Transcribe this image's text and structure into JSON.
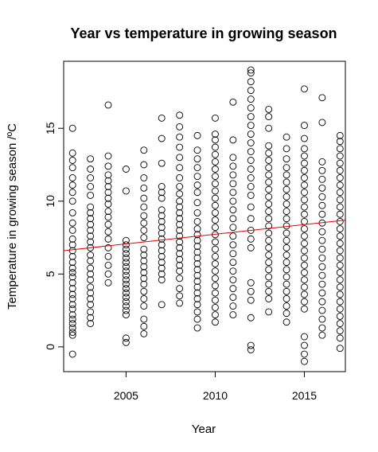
{
  "chart_data": {
    "type": "scatter",
    "title": "Year vs temperature in growing season",
    "xlabel": "Year",
    "ylabel": "Temperature in growing season /ºC",
    "xlim": [
      2001.5,
      2017.3
    ],
    "ylim": [
      -1.7,
      19.6
    ],
    "x_ticks": [
      2005,
      2010,
      2015
    ],
    "y_ticks": [
      0,
      5,
      10,
      15
    ],
    "grid": false,
    "trend_line": {
      "color": "#e00000",
      "x": [
        2001.5,
        2017.3
      ],
      "y": [
        6.6,
        8.7
      ]
    },
    "points": [
      [
        2002,
        -0.5
      ],
      [
        2002,
        0.8
      ],
      [
        2002,
        1.0
      ],
      [
        2002,
        1.3
      ],
      [
        2002,
        1.6
      ],
      [
        2002,
        1.9
      ],
      [
        2002,
        2.2
      ],
      [
        2002,
        2.6
      ],
      [
        2002,
        2.9
      ],
      [
        2002,
        3.3
      ],
      [
        2002,
        3.6
      ],
      [
        2002,
        4.0
      ],
      [
        2002,
        4.4
      ],
      [
        2002,
        4.8
      ],
      [
        2002,
        5.1
      ],
      [
        2002,
        5.4
      ],
      [
        2002,
        5.8
      ],
      [
        2002,
        6.2
      ],
      [
        2002,
        6.6
      ],
      [
        2002,
        7.0
      ],
      [
        2002,
        7.4
      ],
      [
        2002,
        8.0
      ],
      [
        2002,
        8.5
      ],
      [
        2002,
        9.2
      ],
      [
        2002,
        10.0
      ],
      [
        2002,
        10.6
      ],
      [
        2002,
        11.1
      ],
      [
        2002,
        11.6
      ],
      [
        2002,
        12.3
      ],
      [
        2002,
        12.8
      ],
      [
        2002,
        13.3
      ],
      [
        2002,
        15.0
      ],
      [
        2003,
        1.6
      ],
      [
        2003,
        2.0
      ],
      [
        2003,
        2.4
      ],
      [
        2003,
        2.9
      ],
      [
        2003,
        3.3
      ],
      [
        2003,
        3.7
      ],
      [
        2003,
        4.1
      ],
      [
        2003,
        4.6
      ],
      [
        2003,
        5.0
      ],
      [
        2003,
        5.4
      ],
      [
        2003,
        5.9
      ],
      [
        2003,
        6.3
      ],
      [
        2003,
        6.8
      ],
      [
        2003,
        7.2
      ],
      [
        2003,
        7.6
      ],
      [
        2003,
        8.0
      ],
      [
        2003,
        8.4
      ],
      [
        2003,
        8.8
      ],
      [
        2003,
        9.2
      ],
      [
        2003,
        9.6
      ],
      [
        2003,
        10.4
      ],
      [
        2003,
        11.0
      ],
      [
        2003,
        11.6
      ],
      [
        2003,
        12.2
      ],
      [
        2003,
        12.9
      ],
      [
        2004,
        4.4
      ],
      [
        2004,
        5.0
      ],
      [
        2004,
        5.6
      ],
      [
        2004,
        6.2
      ],
      [
        2004,
        6.8
      ],
      [
        2004,
        7.4
      ],
      [
        2004,
        7.9
      ],
      [
        2004,
        8.4
      ],
      [
        2004,
        8.9
      ],
      [
        2004,
        9.3
      ],
      [
        2004,
        9.8
      ],
      [
        2004,
        10.2
      ],
      [
        2004,
        10.6
      ],
      [
        2004,
        11.0
      ],
      [
        2004,
        11.4
      ],
      [
        2004,
        11.8
      ],
      [
        2004,
        12.4
      ],
      [
        2004,
        13.1
      ],
      [
        2004,
        16.6
      ],
      [
        2005,
        0.3
      ],
      [
        2005,
        0.6
      ],
      [
        2005,
        2.2
      ],
      [
        2005,
        2.5
      ],
      [
        2005,
        2.8
      ],
      [
        2005,
        3.1
      ],
      [
        2005,
        3.4
      ],
      [
        2005,
        3.7
      ],
      [
        2005,
        4.0
      ],
      [
        2005,
        4.3
      ],
      [
        2005,
        4.6
      ],
      [
        2005,
        4.9
      ],
      [
        2005,
        5.2
      ],
      [
        2005,
        5.5
      ],
      [
        2005,
        5.8
      ],
      [
        2005,
        6.1
      ],
      [
        2005,
        6.4
      ],
      [
        2005,
        6.7
      ],
      [
        2005,
        7.0
      ],
      [
        2005,
        7.3
      ],
      [
        2005,
        10.7
      ],
      [
        2005,
        12.2
      ],
      [
        2006,
        0.9
      ],
      [
        2006,
        1.4
      ],
      [
        2006,
        1.9
      ],
      [
        2006,
        2.8
      ],
      [
        2006,
        3.3
      ],
      [
        2006,
        3.8
      ],
      [
        2006,
        4.3
      ],
      [
        2006,
        4.7
      ],
      [
        2006,
        5.1
      ],
      [
        2006,
        5.5
      ],
      [
        2006,
        5.9
      ],
      [
        2006,
        6.3
      ],
      [
        2006,
        6.7
      ],
      [
        2006,
        7.5
      ],
      [
        2006,
        8.0
      ],
      [
        2006,
        8.5
      ],
      [
        2006,
        9.0
      ],
      [
        2006,
        9.6
      ],
      [
        2006,
        10.2
      ],
      [
        2006,
        10.9
      ],
      [
        2006,
        11.6
      ],
      [
        2006,
        12.5
      ],
      [
        2006,
        13.5
      ],
      [
        2007,
        2.9
      ],
      [
        2007,
        4.6
      ],
      [
        2007,
        5.0
      ],
      [
        2007,
        5.4
      ],
      [
        2007,
        5.8
      ],
      [
        2007,
        6.2
      ],
      [
        2007,
        6.6
      ],
      [
        2007,
        7.0
      ],
      [
        2007,
        7.4
      ],
      [
        2007,
        7.8
      ],
      [
        2007,
        8.2
      ],
      [
        2007,
        8.6
      ],
      [
        2007,
        9.0
      ],
      [
        2007,
        9.4
      ],
      [
        2007,
        10.2
      ],
      [
        2007,
        10.6
      ],
      [
        2007,
        11.0
      ],
      [
        2007,
        12.6
      ],
      [
        2007,
        14.3
      ],
      [
        2007,
        15.7
      ],
      [
        2008,
        3.0
      ],
      [
        2008,
        3.5
      ],
      [
        2008,
        4.0
      ],
      [
        2008,
        4.7
      ],
      [
        2008,
        5.2
      ],
      [
        2008,
        5.6
      ],
      [
        2008,
        6.0
      ],
      [
        2008,
        6.4
      ],
      [
        2008,
        6.8
      ],
      [
        2008,
        7.2
      ],
      [
        2008,
        7.6
      ],
      [
        2008,
        8.0
      ],
      [
        2008,
        8.4
      ],
      [
        2008,
        8.8
      ],
      [
        2008,
        9.2
      ],
      [
        2008,
        9.6
      ],
      [
        2008,
        10.0
      ],
      [
        2008,
        10.5
      ],
      [
        2008,
        11.0
      ],
      [
        2008,
        11.6
      ],
      [
        2008,
        12.3
      ],
      [
        2008,
        13.0
      ],
      [
        2008,
        13.7
      ],
      [
        2008,
        14.4
      ],
      [
        2008,
        15.1
      ],
      [
        2008,
        15.9
      ],
      [
        2009,
        1.3
      ],
      [
        2009,
        1.9
      ],
      [
        2009,
        2.4
      ],
      [
        2009,
        2.9
      ],
      [
        2009,
        3.3
      ],
      [
        2009,
        3.7
      ],
      [
        2009,
        4.1
      ],
      [
        2009,
        4.5
      ],
      [
        2009,
        4.9
      ],
      [
        2009,
        5.3
      ],
      [
        2009,
        5.7
      ],
      [
        2009,
        6.1
      ],
      [
        2009,
        6.5
      ],
      [
        2009,
        6.9
      ],
      [
        2009,
        7.3
      ],
      [
        2009,
        7.7
      ],
      [
        2009,
        8.1
      ],
      [
        2009,
        8.6
      ],
      [
        2009,
        9.2
      ],
      [
        2009,
        9.9
      ],
      [
        2009,
        10.6
      ],
      [
        2009,
        11.1
      ],
      [
        2009,
        11.7
      ],
      [
        2009,
        12.3
      ],
      [
        2009,
        12.9
      ],
      [
        2009,
        13.5
      ],
      [
        2009,
        14.5
      ],
      [
        2010,
        1.7
      ],
      [
        2010,
        2.2
      ],
      [
        2010,
        2.7
      ],
      [
        2010,
        3.2
      ],
      [
        2010,
        3.7
      ],
      [
        2010,
        4.2
      ],
      [
        2010,
        4.7
      ],
      [
        2010,
        5.2
      ],
      [
        2010,
        5.7
      ],
      [
        2010,
        6.2
      ],
      [
        2010,
        6.7
      ],
      [
        2010,
        7.2
      ],
      [
        2010,
        7.7
      ],
      [
        2010,
        8.2
      ],
      [
        2010,
        8.7
      ],
      [
        2010,
        9.2
      ],
      [
        2010,
        9.7
      ],
      [
        2010,
        10.2
      ],
      [
        2010,
        10.7
      ],
      [
        2010,
        11.2
      ],
      [
        2010,
        11.7
      ],
      [
        2010,
        12.2
      ],
      [
        2010,
        12.7
      ],
      [
        2010,
        13.2
      ],
      [
        2010,
        13.7
      ],
      [
        2010,
        14.2
      ],
      [
        2010,
        14.6
      ],
      [
        2010,
        15.7
      ],
      [
        2011,
        2.2
      ],
      [
        2011,
        2.8
      ],
      [
        2011,
        3.4
      ],
      [
        2011,
        4.0
      ],
      [
        2011,
        4.6
      ],
      [
        2011,
        5.2
      ],
      [
        2011,
        5.8
      ],
      [
        2011,
        6.4
      ],
      [
        2011,
        7.0
      ],
      [
        2011,
        7.6
      ],
      [
        2011,
        8.2
      ],
      [
        2011,
        8.8
      ],
      [
        2011,
        9.4
      ],
      [
        2011,
        10.0
      ],
      [
        2011,
        10.6
      ],
      [
        2011,
        11.2
      ],
      [
        2011,
        11.8
      ],
      [
        2011,
        12.4
      ],
      [
        2011,
        13.0
      ],
      [
        2011,
        14.2
      ],
      [
        2011,
        16.8
      ],
      [
        2012,
        -0.2
      ],
      [
        2012,
        0.1
      ],
      [
        2012,
        2.0
      ],
      [
        2012,
        3.2
      ],
      [
        2012,
        3.8
      ],
      [
        2012,
        4.4
      ],
      [
        2012,
        6.8
      ],
      [
        2012,
        7.4
      ],
      [
        2012,
        8.0
      ],
      [
        2012,
        8.8
      ],
      [
        2012,
        9.6
      ],
      [
        2012,
        10.4
      ],
      [
        2012,
        11.0
      ],
      [
        2012,
        11.6
      ],
      [
        2012,
        12.2
      ],
      [
        2012,
        12.8
      ],
      [
        2012,
        13.4
      ],
      [
        2012,
        14.0
      ],
      [
        2012,
        14.6
      ],
      [
        2012,
        15.2
      ],
      [
        2012,
        15.8
      ],
      [
        2012,
        16.4
      ],
      [
        2012,
        17.0
      ],
      [
        2012,
        17.6
      ],
      [
        2012,
        18.2
      ],
      [
        2012,
        18.8
      ],
      [
        2012,
        19.0
      ],
      [
        2013,
        2.4
      ],
      [
        2013,
        3.3
      ],
      [
        2013,
        3.8
      ],
      [
        2013,
        4.3
      ],
      [
        2013,
        4.8
      ],
      [
        2013,
        5.3
      ],
      [
        2013,
        5.8
      ],
      [
        2013,
        6.3
      ],
      [
        2013,
        6.8
      ],
      [
        2013,
        7.3
      ],
      [
        2013,
        7.8
      ],
      [
        2013,
        8.3
      ],
      [
        2013,
        8.8
      ],
      [
        2013,
        9.3
      ],
      [
        2013,
        9.8
      ],
      [
        2013,
        10.3
      ],
      [
        2013,
        10.8
      ],
      [
        2013,
        11.3
      ],
      [
        2013,
        11.8
      ],
      [
        2013,
        12.3
      ],
      [
        2013,
        12.8
      ],
      [
        2013,
        13.3
      ],
      [
        2013,
        13.8
      ],
      [
        2013,
        15.0
      ],
      [
        2013,
        15.8
      ],
      [
        2013,
        16.3
      ],
      [
        2014,
        1.7
      ],
      [
        2014,
        2.3
      ],
      [
        2014,
        2.8
      ],
      [
        2014,
        3.3
      ],
      [
        2014,
        3.8
      ],
      [
        2014,
        4.3
      ],
      [
        2014,
        4.8
      ],
      [
        2014,
        5.3
      ],
      [
        2014,
        5.8
      ],
      [
        2014,
        6.3
      ],
      [
        2014,
        6.8
      ],
      [
        2014,
        7.3
      ],
      [
        2014,
        7.8
      ],
      [
        2014,
        8.3
      ],
      [
        2014,
        8.8
      ],
      [
        2014,
        9.3
      ],
      [
        2014,
        9.8
      ],
      [
        2014,
        10.3
      ],
      [
        2014,
        10.8
      ],
      [
        2014,
        11.3
      ],
      [
        2014,
        11.8
      ],
      [
        2014,
        12.3
      ],
      [
        2014,
        12.9
      ],
      [
        2014,
        13.6
      ],
      [
        2014,
        14.4
      ],
      [
        2015,
        -1.0
      ],
      [
        2015,
        -0.5
      ],
      [
        2015,
        0.1
      ],
      [
        2015,
        0.7
      ],
      [
        2015,
        2.6
      ],
      [
        2015,
        3.1
      ],
      [
        2015,
        3.6
      ],
      [
        2015,
        4.1
      ],
      [
        2015,
        4.6
      ],
      [
        2015,
        5.1
      ],
      [
        2015,
        5.6
      ],
      [
        2015,
        6.1
      ],
      [
        2015,
        6.6
      ],
      [
        2015,
        7.1
      ],
      [
        2015,
        7.6
      ],
      [
        2015,
        8.1
      ],
      [
        2015,
        8.6
      ],
      [
        2015,
        9.1
      ],
      [
        2015,
        9.6
      ],
      [
        2015,
        10.1
      ],
      [
        2015,
        10.6
      ],
      [
        2015,
        11.1
      ],
      [
        2015,
        11.6
      ],
      [
        2015,
        12.1
      ],
      [
        2015,
        12.6
      ],
      [
        2015,
        13.1
      ],
      [
        2015,
        13.6
      ],
      [
        2015,
        14.3
      ],
      [
        2015,
        15.2
      ],
      [
        2015,
        17.7
      ],
      [
        2016,
        0.8
      ],
      [
        2016,
        1.3
      ],
      [
        2016,
        1.9
      ],
      [
        2016,
        2.5
      ],
      [
        2016,
        3.1
      ],
      [
        2016,
        3.7
      ],
      [
        2016,
        4.3
      ],
      [
        2016,
        4.9
      ],
      [
        2016,
        5.5
      ],
      [
        2016,
        6.1
      ],
      [
        2016,
        6.7
      ],
      [
        2016,
        7.3
      ],
      [
        2016,
        7.9
      ],
      [
        2016,
        8.5
      ],
      [
        2016,
        9.1
      ],
      [
        2016,
        9.7
      ],
      [
        2016,
        10.3
      ],
      [
        2016,
        10.9
      ],
      [
        2016,
        11.5
      ],
      [
        2016,
        12.1
      ],
      [
        2016,
        12.7
      ],
      [
        2016,
        15.4
      ],
      [
        2016,
        17.1
      ],
      [
        2017,
        -0.1
      ],
      [
        2017,
        0.6
      ],
      [
        2017,
        1.1
      ],
      [
        2017,
        1.6
      ],
      [
        2017,
        2.1
      ],
      [
        2017,
        2.6
      ],
      [
        2017,
        3.1
      ],
      [
        2017,
        3.6
      ],
      [
        2017,
        4.1
      ],
      [
        2017,
        4.6
      ],
      [
        2017,
        5.1
      ],
      [
        2017,
        5.6
      ],
      [
        2017,
        6.1
      ],
      [
        2017,
        6.6
      ],
      [
        2017,
        7.1
      ],
      [
        2017,
        7.6
      ],
      [
        2017,
        8.1
      ],
      [
        2017,
        8.6
      ],
      [
        2017,
        9.1
      ],
      [
        2017,
        9.6
      ],
      [
        2017,
        10.1
      ],
      [
        2017,
        10.6
      ],
      [
        2017,
        11.1
      ],
      [
        2017,
        11.6
      ],
      [
        2017,
        12.1
      ],
      [
        2017,
        12.6
      ],
      [
        2017,
        13.1
      ],
      [
        2017,
        13.6
      ],
      [
        2017,
        14.1
      ],
      [
        2017,
        14.5
      ]
    ]
  }
}
